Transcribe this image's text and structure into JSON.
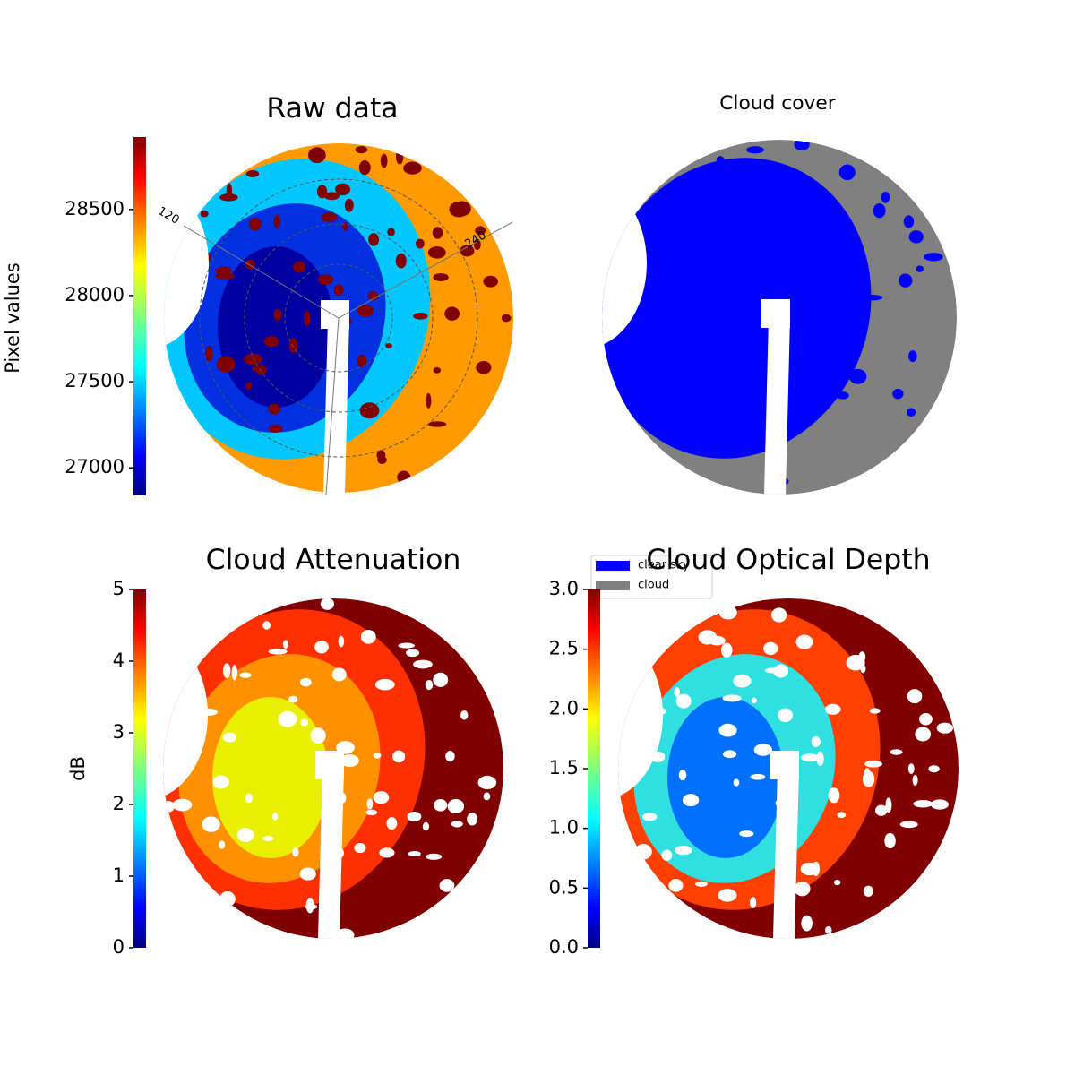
{
  "chart_data": [
    {
      "type": "image",
      "title": "Raw data",
      "colorbar_label": "Pixel values",
      "colormap": "jet",
      "ylim": [
        26840,
        28920
      ],
      "yticks": [
        27000,
        27500,
        28000,
        28500
      ],
      "annotations": [
        "120",
        "240"
      ]
    },
    {
      "type": "image",
      "title": "Cloud cover",
      "series": [
        {
          "name": "clear sky",
          "color": "#0000ff"
        },
        {
          "name": "cloud",
          "color": "#808080"
        }
      ]
    },
    {
      "type": "image",
      "title": "Cloud Attenuation",
      "colorbar_label": "dB",
      "colormap": "jet",
      "ylim": [
        0,
        5
      ],
      "yticks": [
        0,
        1,
        2,
        3,
        4,
        5
      ]
    },
    {
      "type": "image",
      "title": "Cloud Optical Depth",
      "colormap": "jet",
      "ylim": [
        0,
        3
      ],
      "yticks": [
        {
          "value": 0,
          "label": "0.0"
        },
        {
          "value": 0.5,
          "label": "0.5"
        },
        {
          "value": 1,
          "label": "1.0"
        },
        {
          "value": 1.5,
          "label": "1.5"
        },
        {
          "value": 2,
          "label": "2.0"
        },
        {
          "value": 2.5,
          "label": "2.5"
        },
        {
          "value": 3,
          "label": "3.0"
        }
      ]
    }
  ]
}
